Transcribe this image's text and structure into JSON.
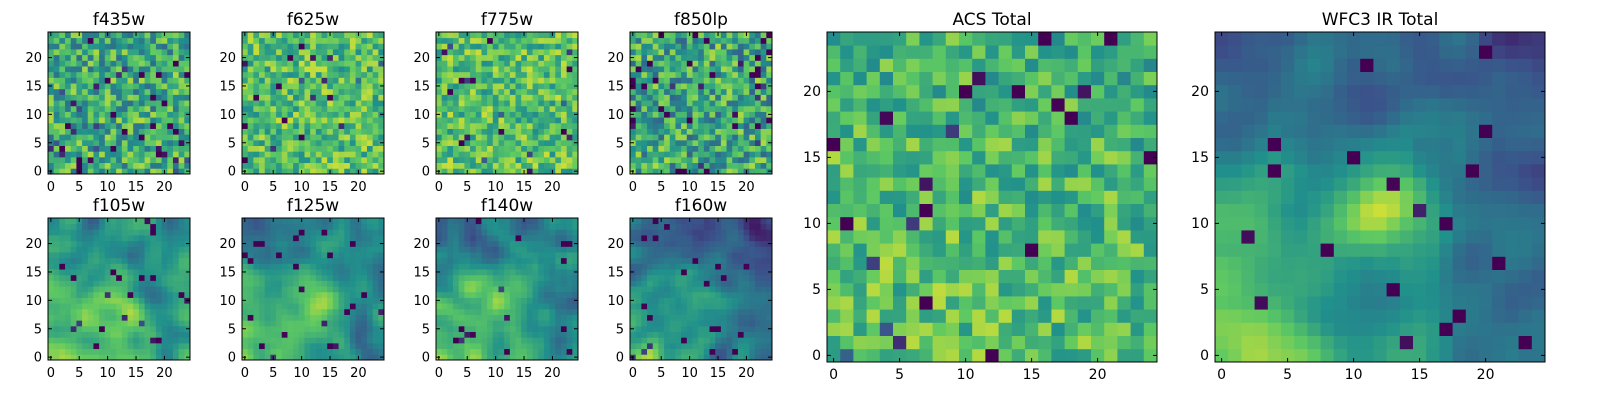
{
  "figure": {
    "colormap": "viridis",
    "colormap_stops": [
      "#440154",
      "#3b528b",
      "#21918c",
      "#5ec962",
      "#fde725"
    ],
    "axis_color": "#000000"
  },
  "chart_data": [
    {
      "type": "heatmap",
      "title": "f435w",
      "rows": 25,
      "cols": 25,
      "origin": "lower",
      "xlim": [
        0,
        24
      ],
      "ylim": [
        0,
        24
      ],
      "xticks": [
        0,
        5,
        10,
        15,
        20
      ],
      "yticks": [
        0,
        5,
        10,
        15,
        20
      ],
      "intensity_mean": 0.62,
      "intensity_spread": 0.26,
      "background_gradient": [
        0,
        0
      ],
      "blob": null,
      "dark_clump_rate": 0.05,
      "structure_scale": 1
    },
    {
      "type": "heatmap",
      "title": "f625w",
      "rows": 25,
      "cols": 25,
      "origin": "lower",
      "xlim": [
        0,
        24
      ],
      "ylim": [
        0,
        24
      ],
      "xticks": [
        0,
        5,
        10,
        15,
        20
      ],
      "yticks": [
        0,
        5,
        10,
        15,
        20
      ],
      "intensity_mean": 0.7,
      "intensity_spread": 0.22,
      "background_gradient": [
        0,
        0
      ],
      "blob": null,
      "dark_clump_rate": 0.04,
      "structure_scale": 1
    },
    {
      "type": "heatmap",
      "title": "f775w",
      "rows": 25,
      "cols": 25,
      "origin": "lower",
      "xlim": [
        0,
        24
      ],
      "ylim": [
        0,
        24
      ],
      "xticks": [
        0,
        5,
        10,
        15,
        20
      ],
      "yticks": [
        0,
        5,
        10,
        15,
        20
      ],
      "intensity_mean": 0.7,
      "intensity_spread": 0.22,
      "background_gradient": [
        0,
        0
      ],
      "blob": null,
      "dark_clump_rate": 0.04,
      "structure_scale": 1
    },
    {
      "type": "heatmap",
      "title": "f850lp",
      "rows": 25,
      "cols": 25,
      "origin": "lower",
      "xlim": [
        0,
        24
      ],
      "ylim": [
        0,
        24
      ],
      "xticks": [
        0,
        5,
        10,
        15,
        20
      ],
      "yticks": [
        0,
        5,
        10,
        15,
        20
      ],
      "intensity_mean": 0.6,
      "intensity_spread": 0.28,
      "background_gradient": [
        0,
        0
      ],
      "blob": null,
      "dark_clump_rate": 0.07,
      "structure_scale": 1
    },
    {
      "type": "heatmap",
      "title": "f105w",
      "rows": 25,
      "cols": 25,
      "origin": "lower",
      "xlim": [
        0,
        24
      ],
      "ylim": [
        0,
        24
      ],
      "xticks": [
        0,
        5,
        10,
        15,
        20
      ],
      "yticks": [
        0,
        5,
        10,
        15,
        20
      ],
      "intensity_mean": 0.58,
      "intensity_spread": 0.2,
      "background_gradient": [
        0.22,
        0.12
      ],
      "blob": [
        10,
        9,
        3.5,
        0.25
      ],
      "dark_clump_rate": 0.03,
      "structure_scale": 3
    },
    {
      "type": "heatmap",
      "title": "f125w",
      "rows": 25,
      "cols": 25,
      "origin": "lower",
      "xlim": [
        0,
        24
      ],
      "ylim": [
        0,
        24
      ],
      "xticks": [
        0,
        5,
        10,
        15,
        20
      ],
      "yticks": [
        0,
        5,
        10,
        15,
        20
      ],
      "intensity_mean": 0.52,
      "intensity_spread": 0.2,
      "background_gradient": [
        0.26,
        0.16
      ],
      "blob": [
        12,
        11,
        3.5,
        0.3
      ],
      "dark_clump_rate": 0.03,
      "structure_scale": 3
    },
    {
      "type": "heatmap",
      "title": "f140w",
      "rows": 25,
      "cols": 25,
      "origin": "lower",
      "xlim": [
        0,
        24
      ],
      "ylim": [
        0,
        24
      ],
      "xticks": [
        0,
        5,
        10,
        15,
        20
      ],
      "yticks": [
        0,
        5,
        10,
        15,
        20
      ],
      "intensity_mean": 0.5,
      "intensity_spread": 0.2,
      "background_gradient": [
        0.28,
        0.18
      ],
      "blob": [
        11,
        11,
        3.5,
        0.25
      ],
      "dark_clump_rate": 0.03,
      "structure_scale": 3
    },
    {
      "type": "heatmap",
      "title": "f160w",
      "rows": 25,
      "cols": 25,
      "origin": "lower",
      "xlim": [
        0,
        24
      ],
      "ylim": [
        0,
        24
      ],
      "xticks": [
        0,
        5,
        10,
        15,
        20
      ],
      "yticks": [
        0,
        5,
        10,
        15,
        20
      ],
      "intensity_mean": 0.38,
      "intensity_spread": 0.22,
      "background_gradient": [
        0.35,
        0.2
      ],
      "blob": [
        12,
        11,
        3,
        0.15
      ],
      "dark_clump_rate": 0.04,
      "structure_scale": 3
    },
    {
      "type": "heatmap",
      "title": "ACS Total",
      "rows": 25,
      "cols": 25,
      "origin": "lower",
      "xlim": [
        0,
        24
      ],
      "ylim": [
        0,
        24
      ],
      "xticks": [
        0,
        5,
        10,
        15,
        20
      ],
      "yticks": [
        0,
        5,
        10,
        15,
        20
      ],
      "intensity_mean": 0.68,
      "intensity_spread": 0.2,
      "background_gradient": [
        0.05,
        0.1
      ],
      "blob": null,
      "dark_clump_rate": 0.03,
      "structure_scale": 1
    },
    {
      "type": "heatmap",
      "title": "WFC3 IR Total",
      "rows": 25,
      "cols": 25,
      "origin": "lower",
      "xlim": [
        0,
        24
      ],
      "ylim": [
        0,
        24
      ],
      "xticks": [
        0,
        5,
        10,
        15,
        20
      ],
      "yticks": [
        0,
        5,
        10,
        15,
        20
      ],
      "intensity_mean": 0.42,
      "intensity_spread": 0.14,
      "background_gradient": [
        0.4,
        0.2
      ],
      "blob": [
        12,
        11.5,
        2.6,
        0.5
      ],
      "dark_clump_rate": 0.03,
      "structure_scale": 3
    }
  ]
}
